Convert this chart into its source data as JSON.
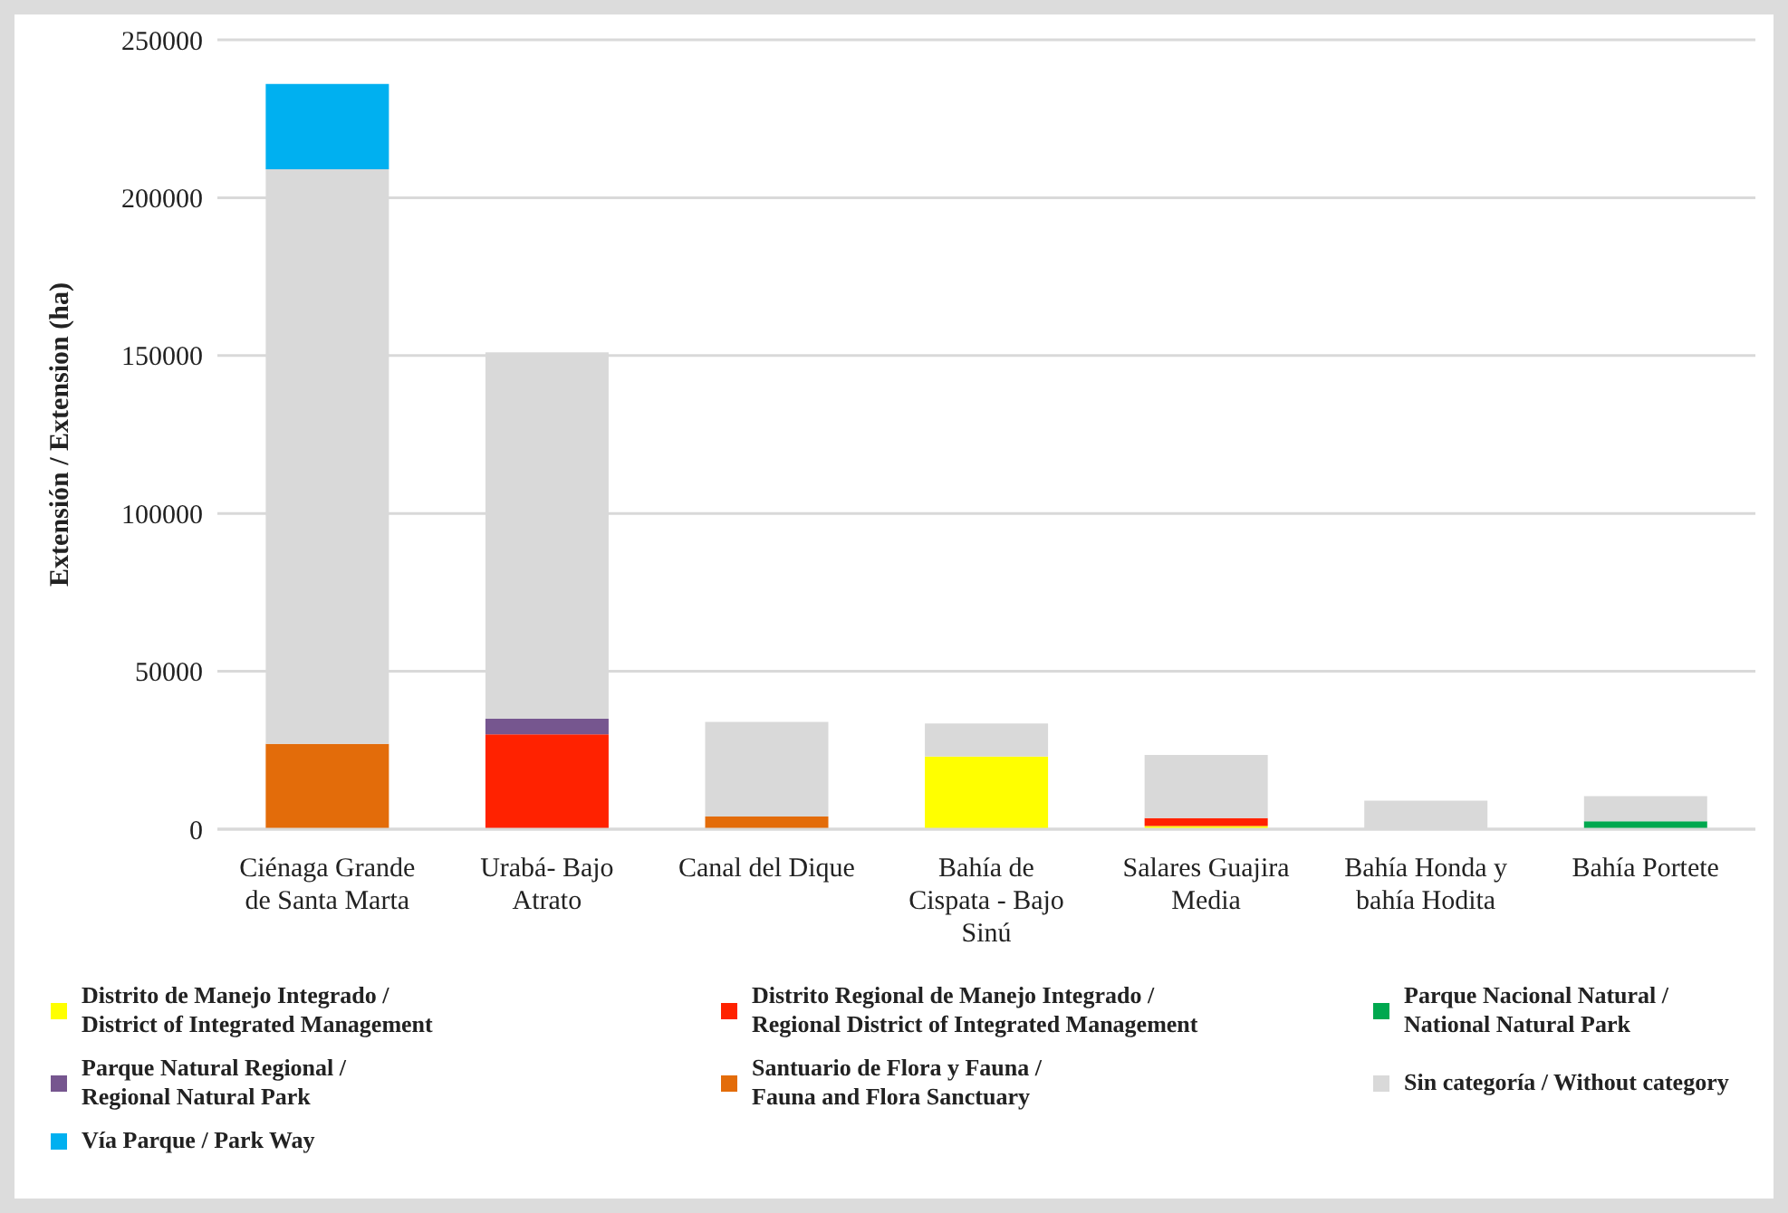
{
  "chart_data": {
    "type": "bar",
    "stacked": true,
    "ylabel": "Extensión / Extension (ha)",
    "categories": [
      "Ciénaga Grande de Santa Marta",
      "Urabá- Bajo Atrato",
      "Canal del Dique",
      "Bahía de Cispata - Bajo Sinú",
      "Salares Guajira Media",
      "Bahía Honda y bahía Hodita",
      "Bahía Portete"
    ],
    "series": [
      {
        "name": "Distrito de Manejo Integrado / District of Integrated Management",
        "color": "#ffff00",
        "values": [
          0,
          0,
          0,
          23000,
          1000,
          0,
          0
        ]
      },
      {
        "name": "Distrito Regional de Manejo Integrado / Regional District of Integrated Management",
        "color": "#ff2200",
        "values": [
          0,
          30000,
          0,
          0,
          2500,
          0,
          0
        ]
      },
      {
        "name": "Parque Nacional Natural / National Natural Park",
        "color": "#00a84f",
        "values": [
          0,
          0,
          0,
          0,
          0,
          0,
          2500
        ]
      },
      {
        "name": "Parque Natural Regional / Regional Natural Park",
        "color": "#76568f",
        "values": [
          0,
          5000,
          0,
          0,
          0,
          0,
          0
        ]
      },
      {
        "name": "Santuario de Flora y Fauna / Fauna and Flora Sanctuary",
        "color": "#e36c0a",
        "values": [
          27000,
          0,
          4000,
          0,
          0,
          0,
          0
        ]
      },
      {
        "name": "Sin categoría / Without category",
        "color": "#d9d9d9",
        "values": [
          182000,
          116000,
          30000,
          10500,
          20000,
          9000,
          8000
        ]
      },
      {
        "name": "Vía Parque / Park Way",
        "color": "#00b0f0",
        "values": [
          27000,
          0,
          0,
          0,
          0,
          0,
          0
        ]
      }
    ],
    "ylim": [
      0,
      250000
    ],
    "yticks": [
      0,
      50000,
      100000,
      150000,
      200000,
      250000
    ],
    "grid": "y",
    "legend": "bottom"
  }
}
